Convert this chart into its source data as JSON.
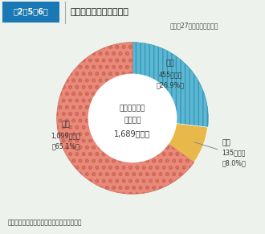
{
  "title_label": "第2－5－6図",
  "title_text": "救急業務実施形態の内訳",
  "date_text": "（平成27年４月１日現在）",
  "segments": [
    {
      "label": "組合",
      "value": 65.1,
      "count": "1,099市町村",
      "pct": "（65.1%）",
      "color": "#E8897A",
      "hatch": "oo"
    },
    {
      "label": "単独",
      "value": 26.9,
      "count": "455市町村",
      "pct": "（26.9%）",
      "color": "#5BB8D4",
      "hatch": "|||"
    },
    {
      "label": "委託",
      "value": 8.0,
      "count": "135市町村",
      "pct": "（8.0%）",
      "color": "#E8B84B",
      "hatch": ""
    }
  ],
  "center_line1": "救急業務実施",
  "center_line2": "市町村数",
  "center_line3": "1,689市町村",
  "note_text": "（備考）「救急業務実施状況調」により作成",
  "background_color": "#EDF2ED",
  "title_bg_color": "#1A78B4",
  "title_fg_color": "#FFFFFF"
}
